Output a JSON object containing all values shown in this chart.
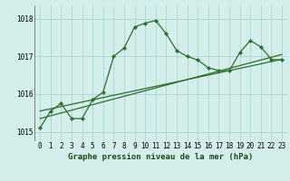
{
  "title": "Graphe pression niveau de la mer (hPa)",
  "bg_color": "#d4eeec",
  "grid_color": "#b0d8d4",
  "line_color": "#2d6e2d",
  "xlim": [
    -0.5,
    23.5
  ],
  "ylim": [
    1014.75,
    1018.35
  ],
  "yticks": [
    1015,
    1016,
    1017,
    1018
  ],
  "xticks": [
    0,
    1,
    2,
    3,
    4,
    5,
    6,
    7,
    8,
    9,
    10,
    11,
    12,
    13,
    14,
    15,
    16,
    17,
    18,
    19,
    20,
    21,
    22,
    23
  ],
  "series1_x": [
    0,
    1,
    2,
    3,
    4,
    5,
    6,
    7,
    8,
    9,
    10,
    11,
    12,
    13,
    14,
    15,
    16,
    17,
    18,
    19,
    20,
    21,
    22,
    23
  ],
  "series1_y": [
    1015.1,
    1015.55,
    1015.75,
    1015.35,
    1015.35,
    1015.85,
    1016.05,
    1017.0,
    1017.22,
    1017.78,
    1017.88,
    1017.95,
    1017.6,
    1017.15,
    1017.0,
    1016.9,
    1016.7,
    1016.62,
    1016.62,
    1017.1,
    1017.42,
    1017.25,
    1016.92,
    1016.9
  ],
  "series2_x": [
    0,
    23
  ],
  "series2_y": [
    1015.55,
    1016.92
  ],
  "series3_x": [
    0,
    23
  ],
  "series3_y": [
    1015.35,
    1017.05
  ],
  "title_fontsize": 6.5,
  "tick_fontsize": 5.5
}
